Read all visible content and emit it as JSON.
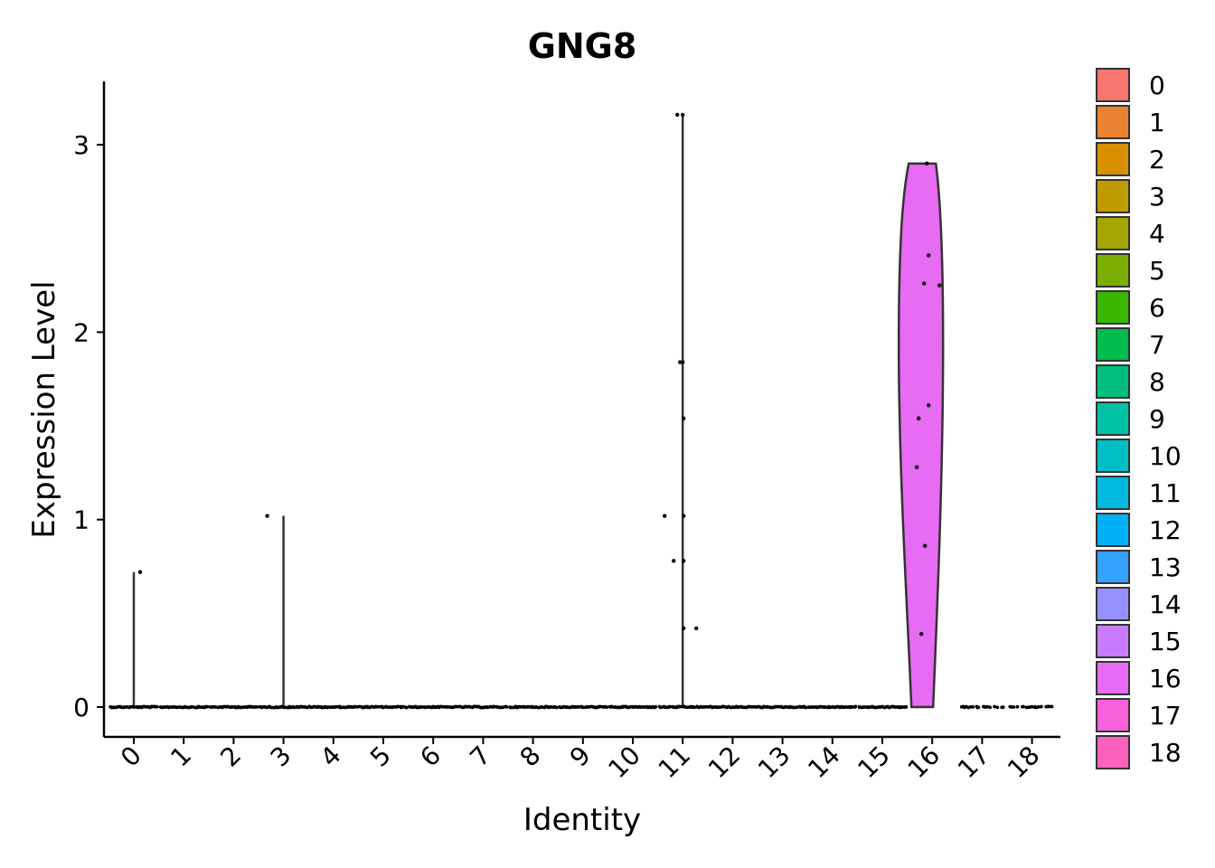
{
  "chart_data": {
    "type": "violin",
    "title": "GNG8",
    "xlabel": "Identity",
    "ylabel": "Expression Level",
    "categories": [
      "0",
      "1",
      "2",
      "3",
      "4",
      "5",
      "6",
      "7",
      "8",
      "9",
      "10",
      "11",
      "12",
      "13",
      "14",
      "15",
      "16",
      "17",
      "18"
    ],
    "colors": [
      "#F8766D",
      "#EA8331",
      "#D89000",
      "#C09B00",
      "#A3A500",
      "#7CAE00",
      "#39B600",
      "#00BB4E",
      "#00BF7D",
      "#00C1A3",
      "#00BFC4",
      "#00BAE0",
      "#00B0F6",
      "#35A2FF",
      "#9590FF",
      "#C77CFF",
      "#E76BF3",
      "#FA62DB",
      "#FF62BC"
    ],
    "ylim": [
      -0.16,
      3.33
    ],
    "yticks": [
      0,
      1,
      2,
      3
    ],
    "max_values": [
      0.72,
      0,
      0,
      1.02,
      0,
      0,
      0,
      0,
      0,
      0,
      0,
      3.16,
      0,
      0,
      0,
      0,
      2.9,
      0,
      0
    ],
    "nonzero_points": [
      {
        "cluster": "0",
        "values": [
          0.72
        ]
      },
      {
        "cluster": "3",
        "values": [
          1.02
        ]
      },
      {
        "cluster": "11",
        "values": [
          3.16,
          3.16,
          1.84,
          1.84,
          1.54,
          1.02,
          1.02,
          0.78,
          0.78,
          0.42,
          0.42
        ]
      },
      {
        "cluster": "16",
        "values": [
          2.9,
          2.41,
          2.26,
          2.25,
          1.61,
          1.54,
          1.28,
          0.86,
          0.39
        ]
      }
    ],
    "grid": false,
    "legend_position": "right"
  }
}
